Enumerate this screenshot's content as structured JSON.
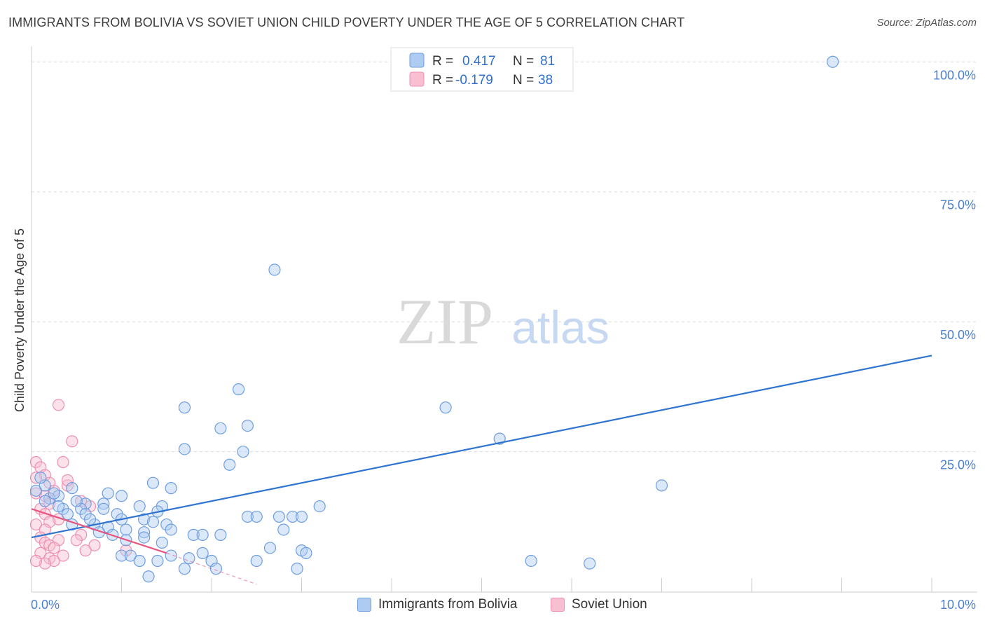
{
  "header": {
    "title": "IMMIGRANTS FROM BOLIVIA VS SOVIET UNION CHILD POVERTY UNDER THE AGE OF 5 CORRELATION CHART",
    "source": "Source: ZipAtlas.com"
  },
  "watermark": {
    "zip": "ZIP",
    "atlas": "atlas"
  },
  "colors": {
    "blue_fill": "#aecbf2",
    "blue_stroke": "#6f9ee0",
    "blue_line": "#2f74d0",
    "pink_fill": "#f7bfd0",
    "pink_stroke": "#ee8faf",
    "pink_line": "#e8557f",
    "axis_label": "#4a7fd1",
    "grid": "#dcdcdc"
  },
  "legend": {
    "rows": [
      {
        "r_label": "R =",
        "r_value": "0.417",
        "n_label": "N =",
        "n_value": "81"
      },
      {
        "r_label": "R =",
        "r_value": "-0.179",
        "n_label": "N =",
        "n_value": "38"
      }
    ]
  },
  "bottom_legend": {
    "series1": "Immigrants from Bolivia",
    "series2": "Soviet Union"
  },
  "chart_data": {
    "type": "scatter",
    "title": "IMMIGRANTS FROM BOLIVIA VS SOVIET UNION CHILD POVERTY UNDER THE AGE OF 5 CORRELATION CHART",
    "xlabel": "",
    "ylabel": "Child Poverty Under the Age of 5",
    "xlim": [
      0,
      10
    ],
    "ylim": [
      -2,
      103
    ],
    "x_tick_labels": {
      "left": "0.0%",
      "right": "10.0%"
    },
    "y_ticks": [
      {
        "value": 100,
        "label": "100.0%"
      },
      {
        "value": 75,
        "label": "75.0%"
      },
      {
        "value": 50,
        "label": "50.0%"
      },
      {
        "value": 25,
        "label": "25.0%"
      }
    ],
    "series": [
      {
        "name": "Immigrants from Bolivia",
        "r": 0.417,
        "n": 81,
        "trend": {
          "x0": 0.0,
          "y0": 8.5,
          "x1": 10.0,
          "y1": 43.5
        },
        "points": [
          [
            8.9,
            100
          ],
          [
            2.7,
            60
          ],
          [
            2.3,
            37
          ],
          [
            1.7,
            33.5
          ],
          [
            4.6,
            33.5
          ],
          [
            2.4,
            30
          ],
          [
            2.1,
            29.5
          ],
          [
            5.2,
            27.5
          ],
          [
            1.7,
            25.5
          ],
          [
            2.35,
            25
          ],
          [
            2.2,
            22.5
          ],
          [
            7.0,
            18.5
          ],
          [
            1.35,
            19
          ],
          [
            1.55,
            18
          ],
          [
            0.45,
            18
          ],
          [
            0.05,
            17.5
          ],
          [
            0.3,
            16.5
          ],
          [
            1.0,
            16.5
          ],
          [
            0.85,
            17
          ],
          [
            0.2,
            16
          ],
          [
            0.15,
            15.5
          ],
          [
            0.6,
            15
          ],
          [
            0.8,
            15
          ],
          [
            1.2,
            14.5
          ],
          [
            1.45,
            14.5
          ],
          [
            3.2,
            14.5
          ],
          [
            0.35,
            14
          ],
          [
            0.55,
            14
          ],
          [
            0.8,
            14
          ],
          [
            0.6,
            13
          ],
          [
            0.4,
            13
          ],
          [
            0.95,
            13
          ],
          [
            1.4,
            13.5
          ],
          [
            1.0,
            12
          ],
          [
            1.25,
            12
          ],
          [
            1.35,
            11.5
          ],
          [
            1.5,
            11
          ],
          [
            2.4,
            12.5
          ],
          [
            2.5,
            12.5
          ],
          [
            2.75,
            12.5
          ],
          [
            2.9,
            12.5
          ],
          [
            3.0,
            12.5
          ],
          [
            0.45,
            11
          ],
          [
            0.7,
            11
          ],
          [
            0.85,
            10.5
          ],
          [
            1.05,
            10
          ],
          [
            1.55,
            10
          ],
          [
            0.75,
            9.5
          ],
          [
            0.9,
            9
          ],
          [
            1.25,
            9.5
          ],
          [
            1.8,
            9
          ],
          [
            1.9,
            9
          ],
          [
            2.1,
            9
          ],
          [
            2.8,
            10
          ],
          [
            1.25,
            8.5
          ],
          [
            1.05,
            8
          ],
          [
            1.45,
            7.5
          ],
          [
            2.65,
            6.5
          ],
          [
            3.0,
            6
          ],
          [
            3.05,
            5.5
          ],
          [
            1.0,
            5
          ],
          [
            1.1,
            5
          ],
          [
            1.9,
            5.5
          ],
          [
            1.55,
            5
          ],
          [
            1.75,
            4.5
          ],
          [
            2.0,
            4
          ],
          [
            1.2,
            4
          ],
          [
            1.4,
            4
          ],
          [
            2.5,
            4
          ],
          [
            5.55,
            4
          ],
          [
            6.2,
            3.5
          ],
          [
            1.7,
            2.5
          ],
          [
            2.05,
            2.5
          ],
          [
            2.95,
            2.5
          ],
          [
            1.3,
            1
          ],
          [
            0.3,
            14.5
          ],
          [
            0.5,
            15.5
          ],
          [
            0.15,
            18.5
          ],
          [
            0.25,
            17
          ],
          [
            0.1,
            20
          ],
          [
            0.65,
            12
          ]
        ]
      },
      {
        "name": "Soviet Union",
        "r": -0.179,
        "n": 38,
        "trend": {
          "x0": 0.0,
          "y0": 14.0,
          "x1": 1.5,
          "y1": 5.5
        },
        "trend_dashed": {
          "x0": 1.5,
          "y0": 5.5,
          "x1": 2.5,
          "y1": -0.5
        },
        "points": [
          [
            0.3,
            34
          ],
          [
            0.45,
            27
          ],
          [
            0.05,
            23
          ],
          [
            0.35,
            23
          ],
          [
            0.1,
            22
          ],
          [
            0.15,
            20.5
          ],
          [
            0.05,
            20
          ],
          [
            0.2,
            19
          ],
          [
            0.4,
            18.5
          ],
          [
            0.25,
            17.5
          ],
          [
            0.05,
            17
          ],
          [
            0.15,
            16.5
          ],
          [
            0.2,
            15
          ],
          [
            0.65,
            14.5
          ],
          [
            0.1,
            14
          ],
          [
            0.15,
            13
          ],
          [
            0.3,
            12
          ],
          [
            0.2,
            11.5
          ],
          [
            0.05,
            11
          ],
          [
            0.15,
            10
          ],
          [
            0.55,
            9
          ],
          [
            0.1,
            8.5
          ],
          [
            0.5,
            8
          ],
          [
            0.3,
            8
          ],
          [
            0.15,
            7.5
          ],
          [
            0.2,
            7
          ],
          [
            0.25,
            6.5
          ],
          [
            0.7,
            7
          ],
          [
            0.6,
            6
          ],
          [
            1.05,
            6
          ],
          [
            0.1,
            5.5
          ],
          [
            0.35,
            5
          ],
          [
            0.2,
            4.5
          ],
          [
            0.25,
            4
          ],
          [
            0.15,
            3.5
          ],
          [
            0.05,
            4
          ],
          [
            0.4,
            19.5
          ],
          [
            0.55,
            15.5
          ]
        ]
      }
    ]
  }
}
